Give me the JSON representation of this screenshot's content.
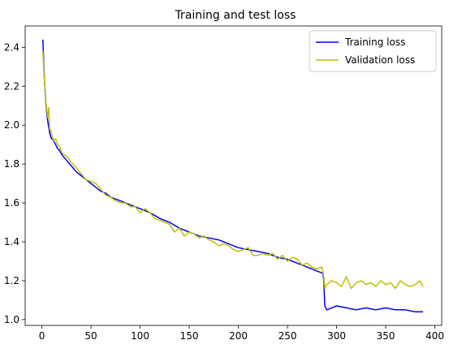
{
  "chart_data": {
    "type": "line",
    "title": "Training and test loss",
    "xlabel": "",
    "ylabel": "",
    "xlim": [
      -17,
      407
    ],
    "ylim": [
      0.97,
      2.51
    ],
    "xticks": [
      0,
      50,
      100,
      150,
      200,
      250,
      300,
      350,
      400
    ],
    "yticks": [
      1.0,
      1.2,
      1.4,
      1.6,
      1.8,
      2.0,
      2.2,
      2.4
    ],
    "xtick_labels": [
      "0",
      "50",
      "100",
      "150",
      "200",
      "250",
      "300",
      "350",
      "400"
    ],
    "ytick_labels": [
      "1.0",
      "1.2",
      "1.4",
      "1.6",
      "1.8",
      "2.0",
      "2.2",
      "2.4"
    ],
    "grid": false,
    "legend_position": "top-right",
    "series": [
      {
        "name": "Training loss",
        "color": "#0000ff",
        "x": [
          1,
          2,
          3,
          4,
          5,
          6,
          7,
          8,
          9,
          10,
          12,
          14,
          16,
          18,
          20,
          25,
          30,
          35,
          40,
          45,
          50,
          55,
          60,
          65,
          70,
          75,
          80,
          85,
          90,
          95,
          100,
          110,
          120,
          130,
          140,
          150,
          160,
          170,
          180,
          190,
          200,
          210,
          220,
          230,
          240,
          250,
          260,
          270,
          280,
          285,
          286,
          287,
          288,
          290,
          295,
          300,
          310,
          320,
          330,
          340,
          350,
          360,
          370,
          380,
          388
        ],
        "y": [
          2.44,
          2.3,
          2.2,
          2.12,
          2.06,
          2.02,
          1.99,
          1.96,
          1.94,
          1.93,
          1.92,
          1.9,
          1.88,
          1.87,
          1.85,
          1.82,
          1.79,
          1.76,
          1.74,
          1.72,
          1.7,
          1.68,
          1.66,
          1.65,
          1.63,
          1.62,
          1.61,
          1.6,
          1.59,
          1.58,
          1.57,
          1.55,
          1.52,
          1.5,
          1.47,
          1.45,
          1.43,
          1.42,
          1.41,
          1.39,
          1.37,
          1.36,
          1.35,
          1.34,
          1.32,
          1.31,
          1.29,
          1.27,
          1.25,
          1.24,
          1.24,
          1.2,
          1.07,
          1.05,
          1.06,
          1.07,
          1.06,
          1.05,
          1.06,
          1.05,
          1.06,
          1.05,
          1.05,
          1.04,
          1.04
        ]
      },
      {
        "name": "Validation loss",
        "color": "#bfbf00",
        "x": [
          1,
          2,
          3,
          4,
          5,
          6,
          7,
          8,
          9,
          10,
          12,
          14,
          16,
          18,
          20,
          25,
          30,
          35,
          40,
          45,
          50,
          55,
          60,
          65,
          70,
          75,
          80,
          85,
          90,
          95,
          100,
          105,
          110,
          115,
          120,
          125,
          130,
          135,
          140,
          145,
          150,
          155,
          160,
          165,
          170,
          175,
          180,
          185,
          190,
          195,
          200,
          205,
          210,
          215,
          220,
          225,
          230,
          235,
          240,
          245,
          250,
          255,
          260,
          265,
          270,
          275,
          280,
          285,
          286,
          287,
          288,
          290,
          295,
          300,
          305,
          310,
          315,
          320,
          325,
          330,
          335,
          340,
          345,
          350,
          355,
          360,
          365,
          370,
          375,
          380,
          385,
          388
        ],
        "y": [
          2.38,
          2.28,
          2.2,
          2.13,
          2.08,
          2.04,
          2.09,
          1.98,
          1.97,
          1.95,
          1.92,
          1.93,
          1.9,
          1.89,
          1.86,
          1.84,
          1.81,
          1.78,
          1.75,
          1.72,
          1.71,
          1.7,
          1.67,
          1.64,
          1.63,
          1.61,
          1.6,
          1.6,
          1.58,
          1.58,
          1.55,
          1.57,
          1.55,
          1.52,
          1.51,
          1.5,
          1.49,
          1.45,
          1.47,
          1.43,
          1.45,
          1.44,
          1.42,
          1.43,
          1.41,
          1.4,
          1.38,
          1.39,
          1.38,
          1.36,
          1.35,
          1.36,
          1.37,
          1.33,
          1.33,
          1.34,
          1.33,
          1.34,
          1.31,
          1.33,
          1.3,
          1.32,
          1.31,
          1.28,
          1.29,
          1.27,
          1.26,
          1.27,
          1.25,
          1.22,
          1.16,
          1.18,
          1.2,
          1.19,
          1.17,
          1.22,
          1.16,
          1.19,
          1.2,
          1.18,
          1.19,
          1.17,
          1.2,
          1.18,
          1.19,
          1.16,
          1.2,
          1.18,
          1.17,
          1.18,
          1.2,
          1.17
        ]
      }
    ]
  }
}
